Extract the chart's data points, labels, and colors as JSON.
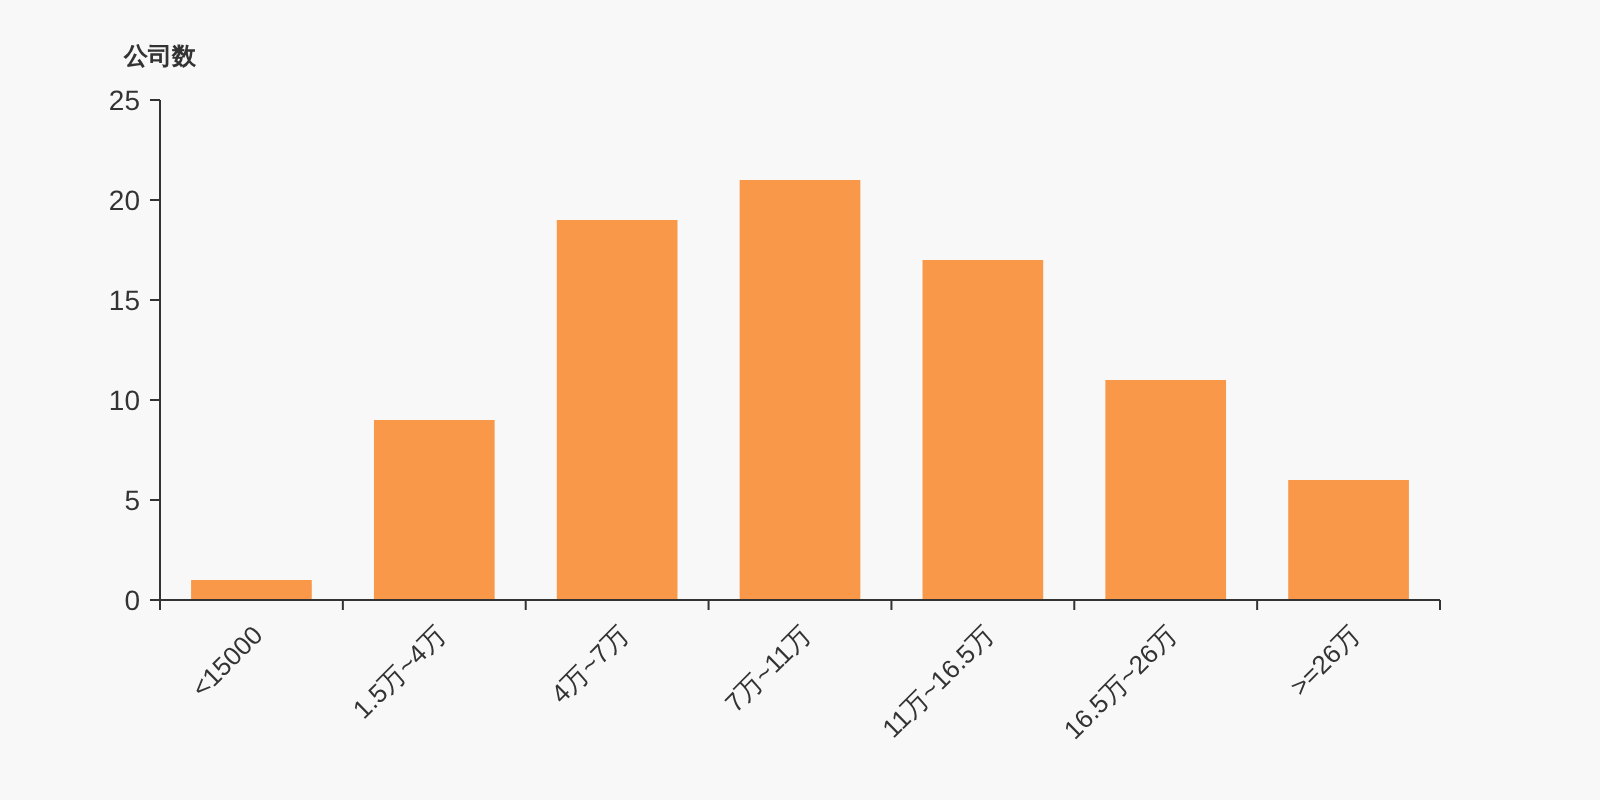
{
  "chart_data": {
    "type": "bar",
    "ylabel": "公司数",
    "categories": [
      "<15000",
      "1.5万~4万",
      "4万~7万",
      "7万~11万",
      "11万~16.5万",
      "16.5万~26万",
      ">=26万"
    ],
    "values": [
      1,
      9,
      19,
      21,
      17,
      11,
      6
    ],
    "color": "#f89848",
    "ylim": [
      0,
      25
    ],
    "yticks": [
      0,
      5,
      10,
      15,
      20,
      25
    ],
    "grid": false
  }
}
